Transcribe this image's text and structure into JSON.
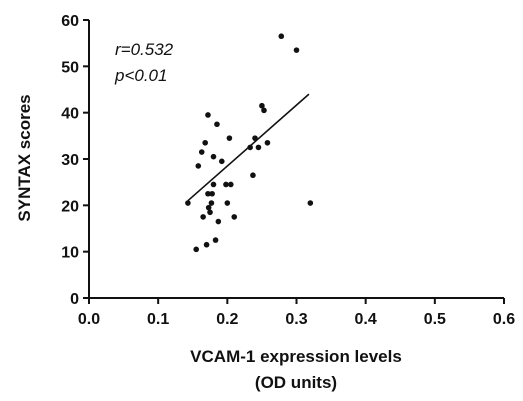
{
  "chart_data": {
    "type": "scatter",
    "xlabel": [
      "VCAM-1 expression levels",
      "(OD units)"
    ],
    "ylabel": "SYNTAX scores",
    "xlim": [
      0.0,
      0.6
    ],
    "ylim": [
      0,
      60
    ],
    "x_ticks": [
      "0.0",
      "0.1",
      "0.2",
      "0.3",
      "0.4",
      "0.5",
      "0.6"
    ],
    "y_ticks": [
      "0",
      "10",
      "20",
      "30",
      "40",
      "50",
      "60"
    ],
    "annotations": [
      "r=0.532",
      "p<0.01"
    ],
    "grid": false,
    "points": [
      {
        "x": 0.143,
        "y": 20.5
      },
      {
        "x": 0.155,
        "y": 10.5
      },
      {
        "x": 0.158,
        "y": 28.5
      },
      {
        "x": 0.163,
        "y": 31.5
      },
      {
        "x": 0.165,
        "y": 17.5
      },
      {
        "x": 0.168,
        "y": 33.5
      },
      {
        "x": 0.17,
        "y": 11.5
      },
      {
        "x": 0.172,
        "y": 39.5
      },
      {
        "x": 0.172,
        "y": 22.5
      },
      {
        "x": 0.173,
        "y": 19.5
      },
      {
        "x": 0.175,
        "y": 18.5
      },
      {
        "x": 0.177,
        "y": 20.5
      },
      {
        "x": 0.178,
        "y": 22.5
      },
      {
        "x": 0.18,
        "y": 24.5
      },
      {
        "x": 0.18,
        "y": 30.5
      },
      {
        "x": 0.183,
        "y": 12.5
      },
      {
        "x": 0.185,
        "y": 37.5
      },
      {
        "x": 0.187,
        "y": 16.5
      },
      {
        "x": 0.192,
        "y": 29.5
      },
      {
        "x": 0.198,
        "y": 24.5
      },
      {
        "x": 0.2,
        "y": 20.5
      },
      {
        "x": 0.203,
        "y": 34.5
      },
      {
        "x": 0.205,
        "y": 24.5
      },
      {
        "x": 0.21,
        "y": 17.5
      },
      {
        "x": 0.233,
        "y": 32.5
      },
      {
        "x": 0.237,
        "y": 26.5
      },
      {
        "x": 0.24,
        "y": 34.5
      },
      {
        "x": 0.245,
        "y": 32.5
      },
      {
        "x": 0.25,
        "y": 41.5
      },
      {
        "x": 0.253,
        "y": 40.5
      },
      {
        "x": 0.258,
        "y": 33.5
      },
      {
        "x": 0.278,
        "y": 56.5
      },
      {
        "x": 0.3,
        "y": 53.5
      },
      {
        "x": 0.32,
        "y": 20.5
      }
    ],
    "trendline": {
      "x": [
        0.143,
        0.318
      ],
      "y": [
        21.0,
        44.0
      ]
    }
  }
}
